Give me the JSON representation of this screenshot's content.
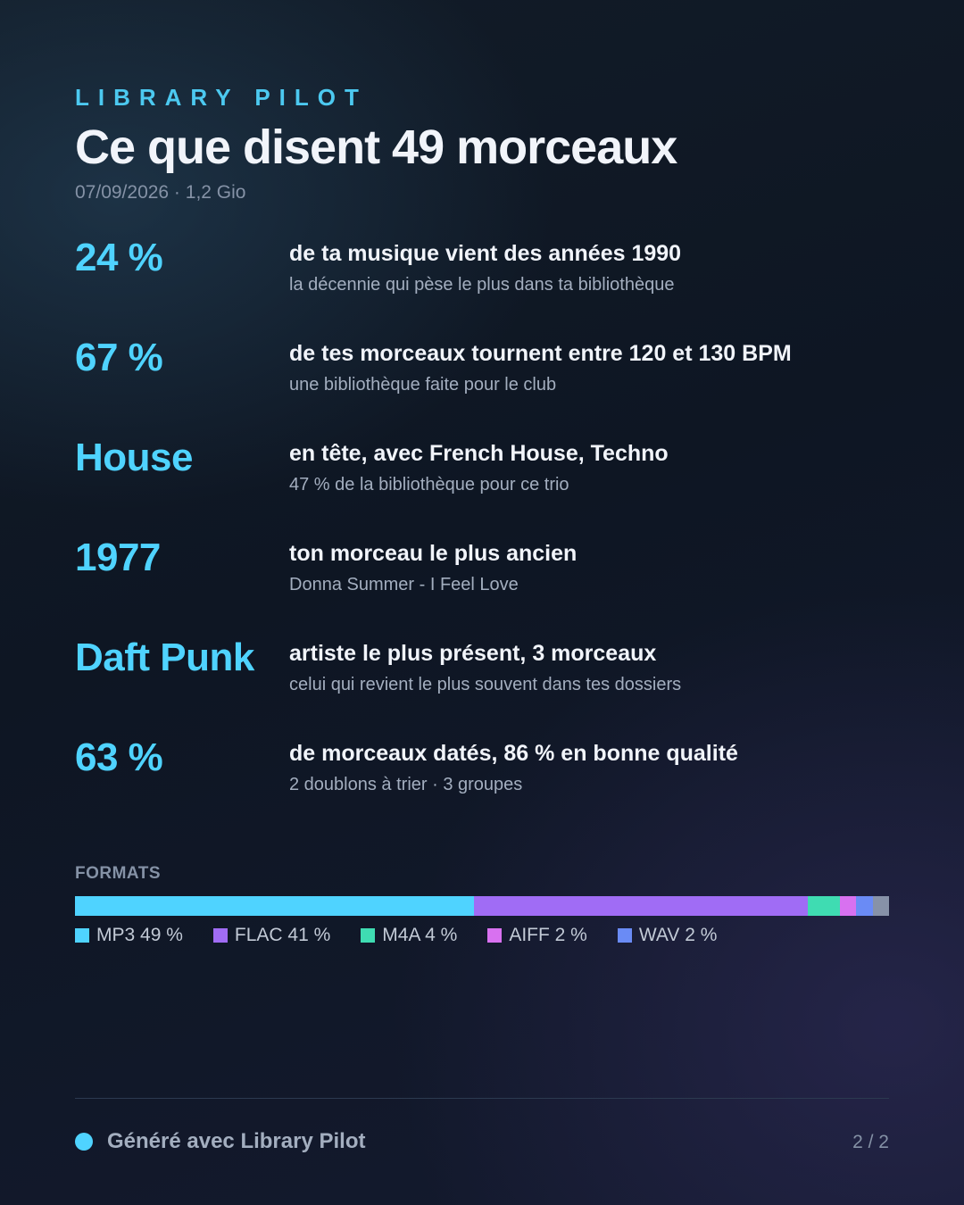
{
  "header": {
    "brand": "LIBRARY PILOT",
    "title": "Ce que disent 49 morceaux",
    "meta": "07/09/2026 · 1,2 Gio"
  },
  "stats": [
    {
      "big": "24 %",
      "main": "de ta musique vient des années 1990",
      "sub": "la décennie qui pèse le plus dans ta bibliothèque"
    },
    {
      "big": "67 %",
      "main": "de tes morceaux tournent entre 120 et 130 BPM",
      "sub": "une bibliothèque faite pour le club"
    },
    {
      "big": "House",
      "main": "en tête, avec French House, Techno",
      "sub": "47 % de la bibliothèque pour ce trio"
    },
    {
      "big": "1977",
      "main": "ton morceau le plus ancien",
      "sub": "Donna Summer - I Feel Love"
    },
    {
      "big": "Daft Punk",
      "main": "artiste le plus présent, 3 morceaux",
      "sub": "celui qui revient le plus souvent dans tes dossiers"
    },
    {
      "big": "63 %",
      "main": "de morceaux datés, 86 % en bonne qualité",
      "sub": "2 doublons à trier · 3 groupes"
    }
  ],
  "formats": {
    "label": "FORMATS",
    "segments": [
      {
        "label": "MP3 49 %",
        "percent": 49,
        "color": "#4fd3ff"
      },
      {
        "label": "FLAC 41 %",
        "percent": 41,
        "color": "#a06cf5"
      },
      {
        "label": "M4A 4 %",
        "percent": 4,
        "color": "#3fdcb2"
      },
      {
        "label": "AIFF 2 %",
        "percent": 2,
        "color": "#d871f0"
      },
      {
        "label": "WAV 2 %",
        "percent": 2,
        "color": "#6a8bf5"
      },
      {
        "percent": 2,
        "color": "#8792a8"
      }
    ]
  },
  "footer": {
    "text": "Généré avec Library Pilot",
    "page": "2 / 2"
  }
}
